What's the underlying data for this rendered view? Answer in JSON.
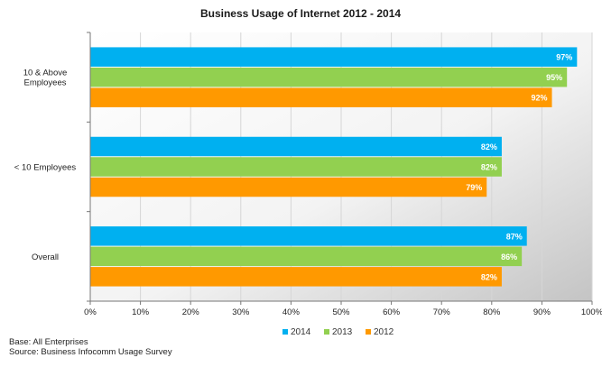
{
  "footer": {
    "base": "Base: All Enterprises",
    "source": "Source: Business Infocomm Usage Survey"
  },
  "chart_data": {
    "type": "bar",
    "orientation": "horizontal",
    "title": "Business Usage of Internet 2012 - 2014",
    "xlabel": "",
    "ylabel": "",
    "categories": [
      "10 & Above Employees",
      "< 10 Employees",
      "Overall"
    ],
    "category_lines": [
      [
        "10 & Above",
        "Employees"
      ],
      [
        "< 10 Employees"
      ],
      [
        "Overall"
      ]
    ],
    "series": [
      {
        "name": "2014",
        "color": "#00B0F0",
        "values": [
          97,
          82,
          87
        ],
        "labels": [
          "97%",
          "82%",
          "87%"
        ]
      },
      {
        "name": "2013",
        "color": "#92D050",
        "values": [
          95,
          82,
          86
        ],
        "labels": [
          "95%",
          "82%",
          "86%"
        ]
      },
      {
        "name": "2012",
        "color": "#FF9900",
        "values": [
          92,
          79,
          82
        ],
        "labels": [
          "92%",
          "79%",
          "82%"
        ]
      }
    ],
    "xlim": [
      0,
      100
    ],
    "x_ticks": [
      0,
      10,
      20,
      30,
      40,
      50,
      60,
      70,
      80,
      90,
      100
    ],
    "x_tick_labels": [
      "0%",
      "10%",
      "20%",
      "30%",
      "40%",
      "50%",
      "60%",
      "70%",
      "80%",
      "90%",
      "100%"
    ],
    "grid": true,
    "legend_position": "bottom"
  }
}
